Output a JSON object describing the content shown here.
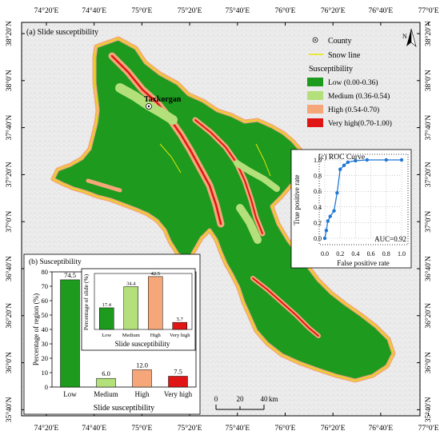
{
  "map": {
    "panel_label": "(a) Slide susceptibility",
    "lon_ticks": [
      "74°20′E",
      "74°40′E",
      "75°0′E",
      "75°20′E",
      "75°40′E",
      "76°0′E",
      "76°20′E",
      "76°40′E",
      "77°0′E"
    ],
    "lat_ticks": [
      "38°20′N",
      "38°0′N",
      "37°40′N",
      "37°20′N",
      "37°0′N",
      "36°40′N",
      "36°20′N",
      "36°0′N",
      "35°40′N"
    ],
    "county_name": "Taxkorgan",
    "north_label": "N",
    "scale_bar": {
      "ticks": [
        "0",
        "20",
        "40"
      ],
      "unit": "km"
    }
  },
  "legend": {
    "county_label": "County",
    "snow_line_label": "Snow line",
    "title": "Susceptibility",
    "classes": [
      {
        "label": "Low (0.00-0.36)",
        "color": "#1e9a1e"
      },
      {
        "label": "Medium (0.36-0.54)",
        "color": "#b3e07a"
      },
      {
        "label": "High (0.54-0.70)",
        "color": "#f5a77a"
      },
      {
        "label": "Very high(0.70-1.00)",
        "color": "#e01515"
      }
    ],
    "snow_line_color": "#e6e600"
  },
  "colors": {
    "low": "#1e9a1e",
    "medium": "#b3e07a",
    "high": "#f5a77a",
    "very_high": "#e01515",
    "terrain_bg": "#ececec",
    "curve": "#1f77d4"
  },
  "chart_data": [
    {
      "id": "susceptibility-area",
      "type": "bar",
      "title": "(b) Susceptibility",
      "xlabel": "Slide  susceptibility",
      "ylabel": "Percentage of region (%)",
      "categories": [
        "Low",
        "Medium",
        "High",
        "Very  high"
      ],
      "values": [
        74.5,
        6.0,
        12.0,
        7.5
      ],
      "value_labels": [
        "74.5",
        "6.0",
        "12.0",
        "7.5"
      ],
      "ylim": [
        0,
        80
      ],
      "yticks": [
        "0",
        "10",
        "20",
        "30",
        "40",
        "50",
        "60",
        "70",
        "80"
      ]
    },
    {
      "id": "susceptibility-slides",
      "type": "bar",
      "xlabel": "Slide susceptibility",
      "ylabel": "Percentage of slide (%)",
      "categories": [
        "Low",
        "Medium",
        "High",
        "Very high"
      ],
      "values": [
        17.4,
        34.4,
        42.5,
        5.7
      ],
      "value_labels": [
        "17.4",
        "34.4",
        "42.5",
        "5.7"
      ],
      "ylim": [
        0,
        45
      ]
    },
    {
      "id": "roc",
      "type": "line",
      "title": "(c) ROC Curve",
      "xlabel": "False positive rate",
      "ylabel": "True positive rate",
      "x": [
        0.0,
        0.02,
        0.04,
        0.07,
        0.12,
        0.16,
        0.2,
        0.25,
        0.3,
        0.4,
        0.55,
        0.8,
        1.0
      ],
      "y": [
        0.0,
        0.1,
        0.22,
        0.28,
        0.35,
        0.58,
        0.88,
        0.93,
        0.97,
        0.99,
        1.0,
        1.0,
        1.0
      ],
      "xlim": [
        0,
        1
      ],
      "ylim": [
        0,
        1
      ],
      "xticks": [
        "0.0",
        "0.2",
        "0.4",
        "0.6",
        "0.8",
        "1.0"
      ],
      "yticks": [
        "0.0",
        "0.2",
        "0.4",
        "0.6",
        "0.8",
        "1.0"
      ],
      "annotation": "AUC=0.92"
    }
  ]
}
